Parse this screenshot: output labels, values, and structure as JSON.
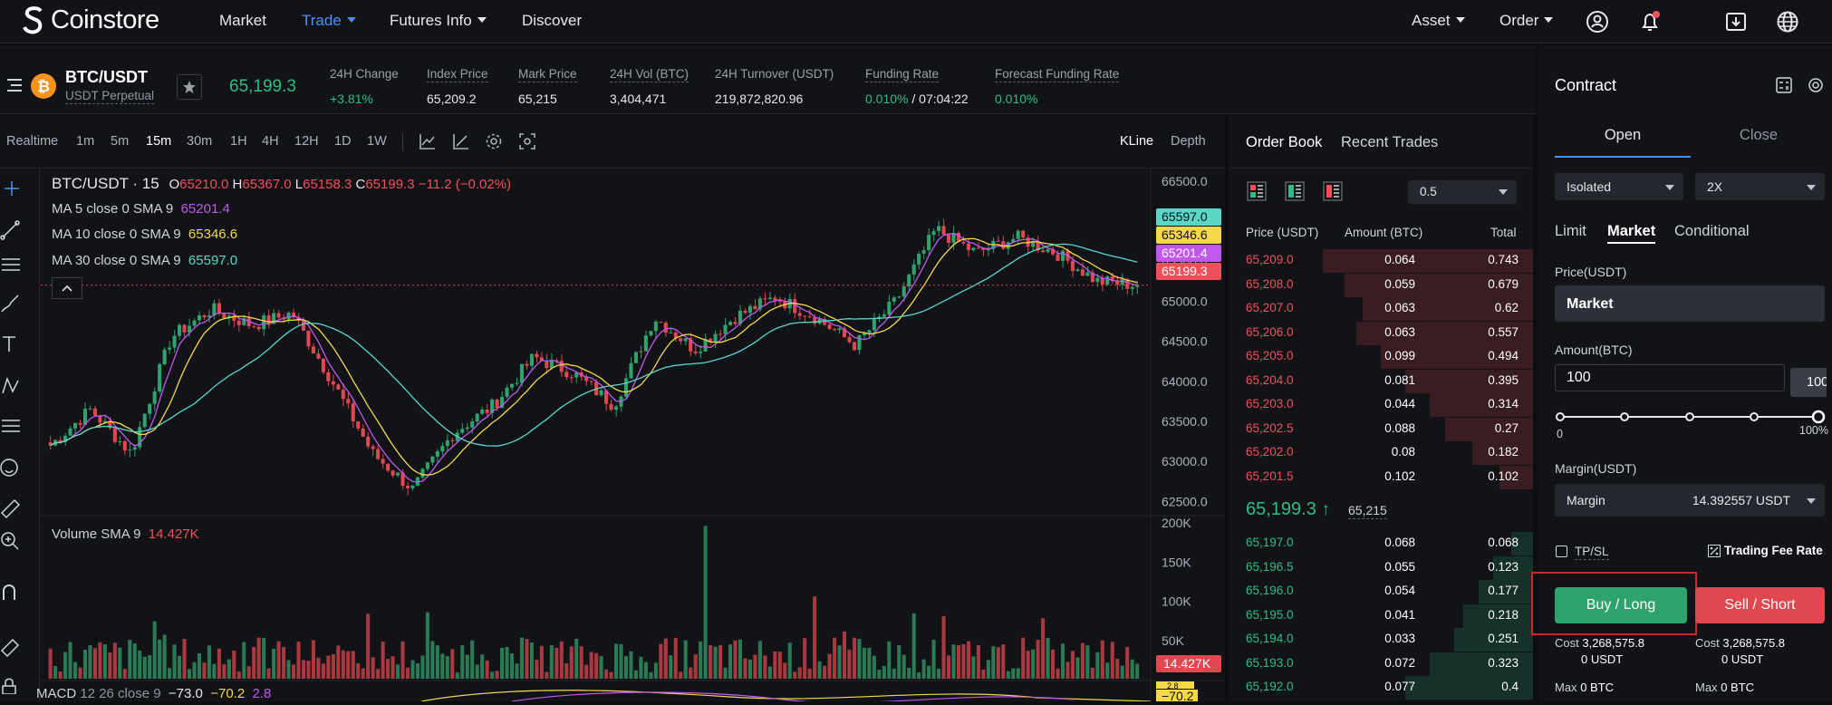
{
  "nav": {
    "logo_text": "Coinstore",
    "items": [
      {
        "label": "Market"
      },
      {
        "label": "Trade"
      },
      {
        "label": "Futures Info"
      },
      {
        "label": "Discover"
      }
    ],
    "right": [
      {
        "label": "Asset"
      },
      {
        "label": "Order"
      }
    ],
    "accent": "#4f8ef7"
  },
  "ticker": {
    "symbol": "BTC/USDT",
    "sub": "USDT Perpetual",
    "last_price": "65,199.3",
    "stats": [
      {
        "label": "24H Change",
        "value": "+3.81%"
      },
      {
        "label": "Index Price",
        "value": "65,209.2"
      },
      {
        "label": "Mark Price",
        "value": "65,215"
      },
      {
        "label": "24H Vol (BTC)",
        "value": "3,404,471"
      },
      {
        "label": "24H Turnover (USDT)",
        "value": "219,872,820.96"
      },
      {
        "label": "Funding Rate",
        "value": "0.010%",
        "extra": "/ 07:04:22"
      },
      {
        "label": "Forecast Funding Rate",
        "value": "0.010%"
      }
    ]
  },
  "chart_toolbar": {
    "timeframes": [
      "Realtime",
      "1m",
      "5m",
      "15m",
      "30m",
      "1H",
      "4H",
      "12H",
      "1D",
      "1W"
    ],
    "active": "15m",
    "views": [
      "KLine",
      "Depth"
    ]
  },
  "chart_legend": {
    "title": "BTC/USDT · 15",
    "o": "65210.0",
    "h": "65367.0",
    "l": "65158.3",
    "c": "65199.3",
    "change": "−11.2 (−0.02%)",
    "ma5": {
      "label": "MA 5 close 0 SMA 9",
      "value": "65201.4",
      "color": "#c058f0"
    },
    "ma10": {
      "label": "MA 10 close 0 SMA 9",
      "value": "65346.6",
      "color": "#f5d84a"
    },
    "ma30": {
      "label": "MA 30 close 0 SMA 9",
      "value": "65597.0",
      "color": "#5ad7c8"
    },
    "volume_label": "Volume",
    "volume_sma": "SMA 9",
    "volume_value": "14.427K",
    "macd_label": "MACD",
    "macd_params": "12 26 close 9",
    "macd_vals": [
      "−73.0",
      "−70.2",
      "2.8"
    ]
  },
  "chart_data": {
    "type": "candlestick",
    "price_axis": [
      "66500.0",
      "66000.0",
      "65500.0",
      "65000.0",
      "64500.0",
      "64000.0",
      "63500.0",
      "63000.0",
      "62500.0"
    ],
    "ylim": [
      62300,
      66600
    ],
    "price_tags": [
      {
        "value": "65597.0",
        "color": "#5ad7c8"
      },
      {
        "value": "65346.6",
        "color": "#f5d84a"
      },
      {
        "value": "65201.4",
        "color": "#c058f0"
      },
      {
        "value": "65199.3",
        "color": "#f0505a"
      }
    ],
    "volume_axis": [
      "200K",
      "150K",
      "100K",
      "50K"
    ],
    "volume_ylim": [
      0,
      200000
    ],
    "volume_tag": "14.427K",
    "macd_tag": "−70.2",
    "macd_tag2": "2.8",
    "anchors": [
      63200,
      63650,
      63100,
      64550,
      64900,
      64700,
      64850,
      64000,
      63100,
      62650,
      63350,
      63700,
      64300,
      64100,
      63700,
      64800,
      64400,
      64800,
      65050,
      64800,
      64450,
      65000,
      65900,
      65600,
      65800,
      65600,
      65250,
      65200
    ]
  },
  "orderbook": {
    "tabs": [
      "Order Book",
      "Recent Trades"
    ],
    "precision": "0.5",
    "headers": [
      "Price (USDT)",
      "Amount (BTC)",
      "Total"
    ],
    "asks": [
      {
        "price": "65,209.0",
        "amount": "0.064",
        "total": "0.743",
        "depth": 0.69
      },
      {
        "price": "65,208.0",
        "amount": "0.059",
        "total": "0.679",
        "depth": 0.62
      },
      {
        "price": "65,207.0",
        "amount": "0.063",
        "total": "0.62",
        "depth": 0.56
      },
      {
        "price": "65,206.0",
        "amount": "0.063",
        "total": "0.557",
        "depth": 0.58
      },
      {
        "price": "65,205.0",
        "amount": "0.099",
        "total": "0.494",
        "depth": 0.5
      },
      {
        "price": "65,204.0",
        "amount": "0.081",
        "total": "0.395",
        "depth": 0.42
      },
      {
        "price": "65,203.0",
        "amount": "0.044",
        "total": "0.314",
        "depth": 0.34
      },
      {
        "price": "65,202.5",
        "amount": "0.088",
        "total": "0.27",
        "depth": 0.29
      },
      {
        "price": "65,202.0",
        "amount": "0.08",
        "total": "0.182",
        "depth": 0.2
      },
      {
        "price": "65,201.5",
        "amount": "0.102",
        "total": "0.102",
        "depth": 0.11
      }
    ],
    "mid_price": "65,199.3",
    "mark": "65,215",
    "bids": [
      {
        "price": "65,197.0",
        "amount": "0.068",
        "total": "0.068",
        "depth": 0.07
      },
      {
        "price": "65,196.5",
        "amount": "0.055",
        "total": "0.123",
        "depth": 0.13
      },
      {
        "price": "65,196.0",
        "amount": "0.054",
        "total": "0.177",
        "depth": 0.18
      },
      {
        "price": "65,195.0",
        "amount": "0.041",
        "total": "0.218",
        "depth": 0.23
      },
      {
        "price": "65,194.0",
        "amount": "0.033",
        "total": "0.251",
        "depth": 0.26
      },
      {
        "price": "65,193.0",
        "amount": "0.072",
        "total": "0.323",
        "depth": 0.34
      },
      {
        "price": "65,192.0",
        "amount": "0.077",
        "total": "0.4",
        "depth": 0.42
      }
    ]
  },
  "contract": {
    "title": "Contract",
    "tabs": [
      "Open",
      "Close"
    ],
    "margin_mode": "Isolated",
    "leverage": "2X",
    "order_types": [
      "Limit",
      "Market",
      "Conditional"
    ],
    "active_order_type": "Market",
    "price_label": "Price(USDT)",
    "price_value": "Market",
    "amount_label": "Amount(BTC)",
    "amount_value": "100",
    "slider_tip": "100",
    "slider_level": 1.0,
    "slider_min": "0",
    "slider_max": "100%",
    "margin_label": "Margin(USDT)",
    "margin_select": "Margin",
    "margin_value": "14.392557 USDT",
    "tpsl": "TP/SL",
    "fee": "Trading Fee Rate",
    "buy_label": "Buy / Long",
    "sell_label": "Sell / Short",
    "buy": {
      "cost_label": "Cost",
      "cost": "3,268,575.8",
      "cost_unit": "0 USDT",
      "max_label": "Max",
      "max": "0 BTC"
    },
    "sell": {
      "cost_label": "Cost",
      "cost": "3,268,575.8",
      "cost_unit": "0 USDT",
      "max_label": "Max",
      "max": "0 BTC"
    },
    "buy_color": "#2ea36c",
    "sell_color": "#e0474f"
  }
}
